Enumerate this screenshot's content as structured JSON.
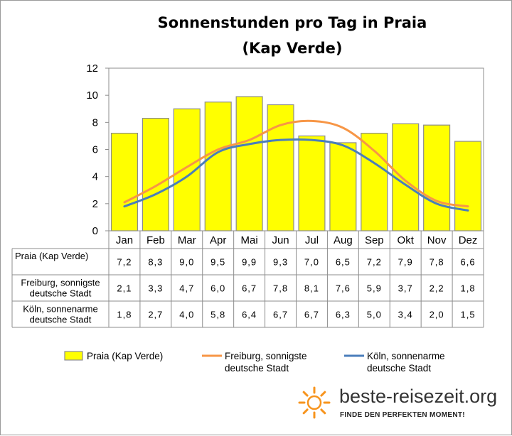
{
  "chart_data": {
    "type": "bar",
    "title": "Sonnenstunden pro Tag in Praia",
    "subtitle": "(Kap Verde)",
    "categories": [
      "Jan",
      "Feb",
      "Mar",
      "Apr",
      "Mai",
      "Jun",
      "Jul",
      "Aug",
      "Sep",
      "Okt",
      "Nov",
      "Dez"
    ],
    "ylim": [
      0,
      12
    ],
    "yticks": [
      "0",
      "2",
      "4",
      "6",
      "8",
      "10",
      "12"
    ],
    "grid": false,
    "legend_position": "bottom",
    "series": [
      {
        "name": "Praia (Kap Verde)",
        "row_label": [
          "Praia (Kap Verde)"
        ],
        "legend_label": [
          "Praia (Kap Verde)"
        ],
        "kind": "bar",
        "color": "#ffff00",
        "edge_color": "#8c8c8c",
        "values": [
          7.2,
          8.3,
          9.0,
          9.5,
          9.9,
          9.3,
          7.0,
          6.5,
          7.2,
          7.9,
          7.8,
          6.6
        ],
        "labels": [
          "7,2",
          "8,3",
          "9,0",
          "9,5",
          "9,9",
          "9,3",
          "7,0",
          "6,5",
          "7,2",
          "7,9",
          "7,8",
          "6,6"
        ]
      },
      {
        "name": "Freiburg, sonnigste deutsche Stadt",
        "row_label": [
          "Freiburg, sonnigste",
          "deutsche Stadt"
        ],
        "legend_label": [
          "Freiburg, sonnigste",
          "deutsche Stadt"
        ],
        "kind": "line",
        "color": "#f79646",
        "values": [
          2.1,
          3.3,
          4.7,
          6.0,
          6.7,
          7.8,
          8.1,
          7.6,
          5.9,
          3.7,
          2.2,
          1.8
        ],
        "labels": [
          "2,1",
          "3,3",
          "4,7",
          "6,0",
          "6,7",
          "7,8",
          "8,1",
          "7,6",
          "5,9",
          "3,7",
          "2,2",
          "1,8"
        ]
      },
      {
        "name": "Köln, sonnenarme deutsche Stadt",
        "row_label": [
          "Köln, sonnenarme",
          "deutsche Stadt"
        ],
        "legend_label": [
          "Köln, sonnenarme",
          "deutsche Stadt"
        ],
        "kind": "line",
        "color": "#4a7ebb",
        "values": [
          1.8,
          2.7,
          4.0,
          5.8,
          6.4,
          6.7,
          6.7,
          6.3,
          5.0,
          3.4,
          2.0,
          1.5
        ],
        "labels": [
          "1,8",
          "2,7",
          "4,0",
          "5,8",
          "6,4",
          "6,7",
          "6,7",
          "6,3",
          "5,0",
          "3,4",
          "2,0",
          "1,5"
        ]
      }
    ]
  },
  "branding": {
    "site": "beste-reisezeit.org",
    "slogan": "FINDE DEN PERFEKTEN MOMENT!",
    "logo_icon": "sun-icon",
    "logo_color": "#f7941d"
  }
}
